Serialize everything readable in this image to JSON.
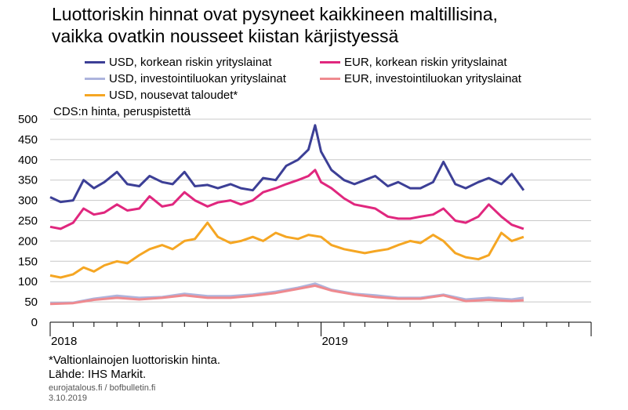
{
  "title": {
    "line1": "Luottoriskin hinnat ovat pysyneet kaikkineen maltillisina,",
    "line2": "vaikka ovatkin nousseet kiistan kärjistyessä"
  },
  "unit_label": "CDS:n hinta, peruspistettä",
  "footnote": {
    "note": "*Valtionlainojen luottoriskin hinta.",
    "source": "Lähde: IHS Markit."
  },
  "footer": {
    "site": "eurojatalous.fi  / bofbulletin.fi",
    "date": "3.10.2019"
  },
  "chart_data": {
    "type": "line",
    "title": "Luottoriskin hinnat ovat pysyneet kaikkineen maltillisina, vaikka ovatkin nousseet kiistan kärjistyessä",
    "ylabel": "CDS:n hinta, peruspistettä",
    "xlabel": "",
    "ylim": [
      0,
      500
    ],
    "yticks": [
      0,
      50,
      100,
      150,
      200,
      250,
      300,
      350,
      400,
      450,
      500
    ],
    "xlim": [
      "2018-01-01",
      "2019-12-31"
    ],
    "x_tick_labels": [
      {
        "date": "2018-01-01",
        "label": "2018"
      },
      {
        "date": "2019-01-01",
        "label": "2019"
      }
    ],
    "x_minor_ticks": "monthly",
    "grid": "horizontal",
    "legend_position": "top",
    "series": [
      {
        "name": "USD, korkean riskin yrityslainat",
        "color": "#3c3f96",
        "x": [
          "2018-01-01",
          "2018-01-15",
          "2018-02-01",
          "2018-02-15",
          "2018-03-01",
          "2018-03-15",
          "2018-04-01",
          "2018-04-15",
          "2018-05-01",
          "2018-05-15",
          "2018-06-01",
          "2018-06-15",
          "2018-07-01",
          "2018-07-15",
          "2018-08-01",
          "2018-08-15",
          "2018-09-01",
          "2018-09-15",
          "2018-10-01",
          "2018-10-15",
          "2018-11-01",
          "2018-11-15",
          "2018-12-01",
          "2018-12-15",
          "2018-12-24",
          "2019-01-01",
          "2019-01-15",
          "2019-02-01",
          "2019-02-15",
          "2019-03-01",
          "2019-03-15",
          "2019-04-01",
          "2019-04-15",
          "2019-05-01",
          "2019-05-15",
          "2019-06-01",
          "2019-06-15",
          "2019-07-01",
          "2019-07-15",
          "2019-08-01",
          "2019-08-15",
          "2019-09-01",
          "2019-09-15",
          "2019-10-01"
        ],
        "y": [
          308,
          296,
          300,
          350,
          330,
          345,
          370,
          340,
          335,
          360,
          345,
          340,
          370,
          335,
          338,
          330,
          340,
          330,
          325,
          355,
          350,
          385,
          400,
          425,
          485,
          420,
          375,
          350,
          340,
          350,
          360,
          335,
          345,
          330,
          330,
          345,
          395,
          340,
          330,
          345,
          355,
          340,
          365,
          325
        ]
      },
      {
        "name": "EUR, korkean riskin yrityslainat",
        "color": "#e0277e",
        "x": [
          "2018-01-01",
          "2018-01-15",
          "2018-02-01",
          "2018-02-15",
          "2018-03-01",
          "2018-03-15",
          "2018-04-01",
          "2018-04-15",
          "2018-05-01",
          "2018-05-15",
          "2018-06-01",
          "2018-06-15",
          "2018-07-01",
          "2018-07-15",
          "2018-08-01",
          "2018-08-15",
          "2018-09-01",
          "2018-09-15",
          "2018-10-01",
          "2018-10-15",
          "2018-11-01",
          "2018-11-15",
          "2018-12-01",
          "2018-12-15",
          "2018-12-24",
          "2019-01-01",
          "2019-01-15",
          "2019-02-01",
          "2019-02-15",
          "2019-03-01",
          "2019-03-15",
          "2019-04-01",
          "2019-04-15",
          "2019-05-01",
          "2019-05-15",
          "2019-06-01",
          "2019-06-15",
          "2019-07-01",
          "2019-07-15",
          "2019-08-01",
          "2019-08-15",
          "2019-09-01",
          "2019-09-15",
          "2019-10-01"
        ],
        "y": [
          235,
          230,
          245,
          280,
          265,
          270,
          290,
          275,
          280,
          310,
          285,
          290,
          320,
          300,
          285,
          295,
          300,
          290,
          300,
          320,
          330,
          340,
          350,
          360,
          375,
          345,
          330,
          305,
          290,
          285,
          280,
          260,
          255,
          255,
          260,
          265,
          280,
          250,
          245,
          260,
          290,
          260,
          240,
          230
        ]
      },
      {
        "name": "USD, investointiluokan yrityslainat",
        "color": "#adb4dd",
        "x": [
          "2018-01-01",
          "2018-02-01",
          "2018-03-01",
          "2018-04-01",
          "2018-05-01",
          "2018-06-01",
          "2018-07-01",
          "2018-08-01",
          "2018-09-01",
          "2018-10-01",
          "2018-11-01",
          "2018-12-01",
          "2018-12-24",
          "2019-01-15",
          "2019-02-15",
          "2019-03-15",
          "2019-04-15",
          "2019-05-15",
          "2019-06-15",
          "2019-07-15",
          "2019-08-15",
          "2019-09-15",
          "2019-10-01"
        ],
        "y": [
          47,
          48,
          58,
          65,
          60,
          62,
          70,
          64,
          64,
          68,
          75,
          85,
          95,
          80,
          70,
          66,
          60,
          60,
          68,
          56,
          60,
          56,
          60
        ]
      },
      {
        "name": "EUR, investointiluokan yrityslainat",
        "color": "#ef8a8f",
        "x": [
          "2018-01-01",
          "2018-02-01",
          "2018-03-01",
          "2018-04-01",
          "2018-05-01",
          "2018-06-01",
          "2018-07-01",
          "2018-08-01",
          "2018-09-01",
          "2018-10-01",
          "2018-11-01",
          "2018-12-01",
          "2018-12-24",
          "2019-01-15",
          "2019-02-15",
          "2019-03-15",
          "2019-04-15",
          "2019-05-15",
          "2019-06-15",
          "2019-07-15",
          "2019-08-15",
          "2019-09-15",
          "2019-10-01"
        ],
        "y": [
          45,
          47,
          55,
          60,
          56,
          60,
          66,
          60,
          60,
          65,
          72,
          82,
          90,
          78,
          68,
          62,
          58,
          58,
          66,
          52,
          55,
          52,
          54
        ]
      },
      {
        "name": "USD, nousevat taloudet*",
        "color": "#f5a623",
        "x": [
          "2018-01-01",
          "2018-01-15",
          "2018-02-01",
          "2018-02-15",
          "2018-03-01",
          "2018-03-15",
          "2018-04-01",
          "2018-04-15",
          "2018-05-01",
          "2018-05-15",
          "2018-06-01",
          "2018-06-15",
          "2018-07-01",
          "2018-07-15",
          "2018-08-01",
          "2018-08-15",
          "2018-09-01",
          "2018-09-15",
          "2018-10-01",
          "2018-10-15",
          "2018-11-01",
          "2018-11-15",
          "2018-12-01",
          "2018-12-15",
          "2019-01-01",
          "2019-01-15",
          "2019-02-01",
          "2019-02-15",
          "2019-03-01",
          "2019-03-15",
          "2019-04-01",
          "2019-04-15",
          "2019-05-01",
          "2019-05-15",
          "2019-06-01",
          "2019-06-15",
          "2019-07-01",
          "2019-07-15",
          "2019-08-01",
          "2019-08-15",
          "2019-09-01",
          "2019-09-15",
          "2019-10-01"
        ],
        "y": [
          115,
          110,
          118,
          135,
          125,
          140,
          150,
          145,
          165,
          180,
          190,
          180,
          200,
          205,
          245,
          210,
          195,
          200,
          210,
          200,
          220,
          210,
          205,
          215,
          210,
          190,
          180,
          175,
          170,
          175,
          180,
          190,
          200,
          195,
          215,
          200,
          170,
          160,
          155,
          165,
          220,
          200,
          210
        ]
      }
    ]
  }
}
